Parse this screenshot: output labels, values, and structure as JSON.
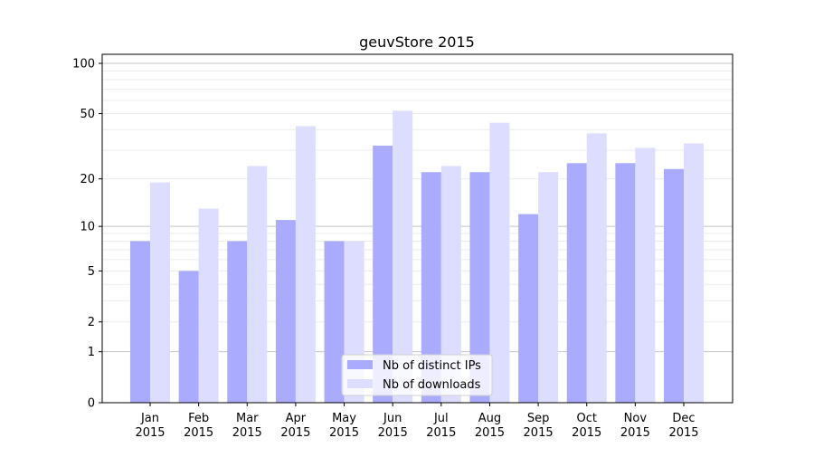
{
  "chart_data": {
    "type": "bar",
    "title": "geuvStore 2015",
    "xlabel": "",
    "ylabel": "",
    "yscale": "log(1+y)",
    "ylim": [
      0,
      110
    ],
    "yticks": [
      0,
      1,
      2,
      5,
      10,
      20,
      50,
      100
    ],
    "grid": true,
    "legend_position": "bottom-center",
    "categories": [
      "Jan\n2015",
      "Feb\n2015",
      "Mar\n2015",
      "Apr\n2015",
      "May\n2015",
      "Jun\n2015",
      "Jul\n2015",
      "Aug\n2015",
      "Sep\n2015",
      "Oct\n2015",
      "Nov\n2015",
      "Dec\n2015"
    ],
    "series": [
      {
        "name": "Nb of distinct IPs",
        "color": "#aaaaff",
        "values": [
          8,
          5,
          8,
          11,
          8,
          32,
          22,
          22,
          12,
          25,
          25,
          23
        ]
      },
      {
        "name": "Nb of downloads",
        "color": "#ddddff",
        "values": [
          19,
          13,
          24,
          42,
          8,
          52,
          24,
          44,
          22,
          38,
          31,
          33
        ]
      }
    ]
  }
}
